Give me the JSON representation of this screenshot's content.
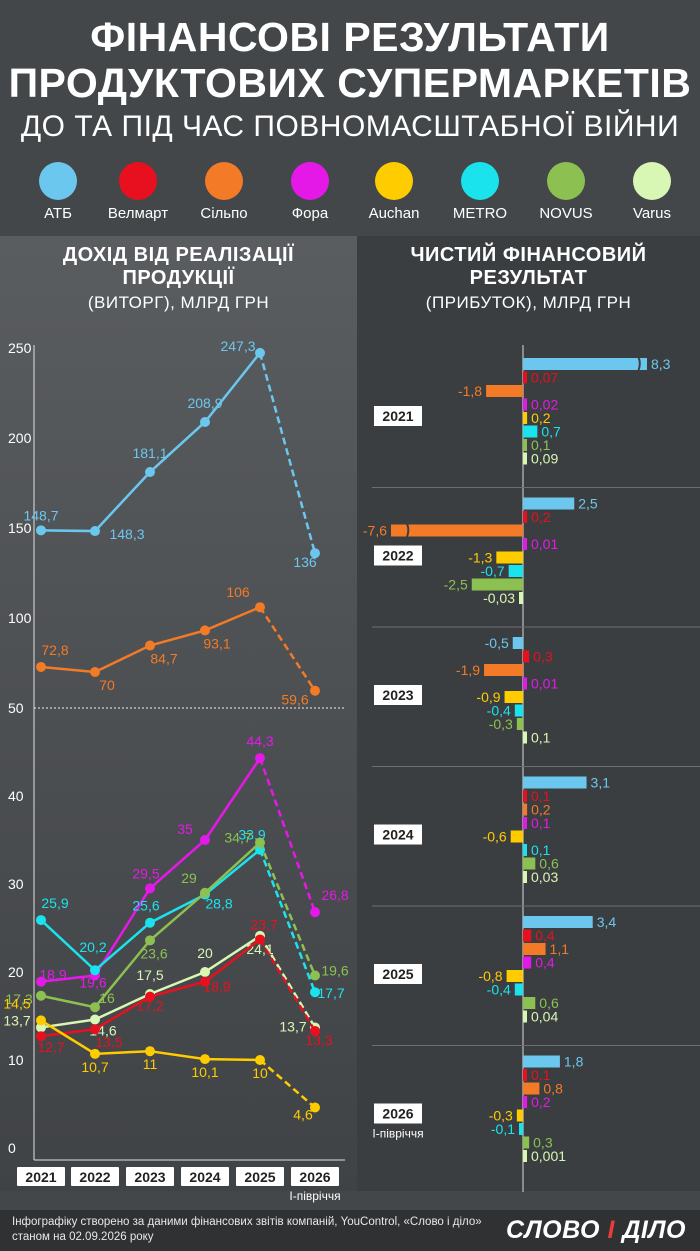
{
  "header": {
    "title_line1": "ФІНАНСОВІ РЕЗУЛЬТАТИ",
    "title_line2": "ПРОДУКТОВИХ СУПЕРМАРКЕТІВ",
    "subtitle": "ДО ТА ПІД ЧАС ПОВНОМАСШТАБНОЇ ВІЙНИ"
  },
  "legend": [
    {
      "name": "АТБ",
      "color": "#6cc7ef"
    },
    {
      "name": "Велмарт",
      "color": "#e8101e"
    },
    {
      "name": "Сільпо",
      "color": "#f37a26"
    },
    {
      "name": "Фора",
      "color": "#e419e8"
    },
    {
      "name": "Auchan",
      "color": "#ffcc00"
    },
    {
      "name": "METRO",
      "color": "#1be3ee"
    },
    {
      "name": "NOVUS",
      "color": "#8cc152"
    },
    {
      "name": "Varus",
      "color": "#d9f7b4"
    }
  ],
  "left_panel": {
    "title_line1": "ДОХІД ВІД РЕАЛІЗАЦІЇ",
    "title_line2": "ПРОДУКЦІЇ",
    "note": "(ВИТОРГ), МЛРД ГРН"
  },
  "right_panel": {
    "title_line1": "ЧИСТИЙ ФІНАНСОВИЙ",
    "title_line2": "РЕЗУЛЬТАТ",
    "note": "(ПРИБУТОК), МЛРД ГРН"
  },
  "chart_data": [
    {
      "type": "line",
      "categories": [
        "2021",
        "2022",
        "2023",
        "2024",
        "2025",
        "2026"
      ],
      "category_note": "І-півріччя",
      "y_ticks": [
        "0",
        "10",
        "20",
        "30",
        "40",
        "50",
        "100",
        "150",
        "200",
        "250"
      ],
      "series": [
        {
          "name": "АТБ",
          "values": [
            148.7,
            148.3,
            181.1,
            208.9,
            247.3,
            136
          ],
          "labels": [
            "148,7",
            "148,3",
            "181,1",
            "208,9",
            "247,3",
            "136"
          ]
        },
        {
          "name": "Сільпо",
          "values": [
            72.8,
            70,
            84.7,
            93.1,
            106,
            59.6
          ],
          "labels": [
            "72,8",
            "70",
            "84,7",
            "93,1",
            "106",
            "59,6"
          ]
        },
        {
          "name": "Фора",
          "values": [
            18.9,
            19.6,
            29.5,
            35,
            44.3,
            26.8
          ],
          "labels": [
            "18,9",
            "19,6",
            "29,5",
            "35",
            "44,3",
            "26,8"
          ]
        },
        {
          "name": "METRO",
          "values": [
            25.9,
            20.2,
            25.6,
            28.8,
            33.9,
            17.7
          ],
          "labels": [
            "25,9",
            "20,2",
            "25,6",
            "28,8",
            "33,9",
            "17,7"
          ]
        },
        {
          "name": "NOVUS",
          "values": [
            17.3,
            16,
            23.6,
            29,
            34.7,
            19.6
          ],
          "labels": [
            "17,3",
            "16",
            "23,6",
            "29",
            "34,7",
            "19,6"
          ]
        },
        {
          "name": "Varus",
          "values": [
            13.7,
            14.6,
            17.5,
            20,
            24.1,
            13.7
          ],
          "labels": [
            "13,7",
            "14,6",
            "17,5",
            "20",
            "24,1",
            "13,7"
          ]
        },
        {
          "name": "Велмарт",
          "values": [
            12.7,
            13.5,
            17.2,
            18.9,
            23.7,
            13.3
          ],
          "labels": [
            "12,7",
            "13,5",
            "17,2",
            "18,9",
            "23,7",
            "13,3"
          ]
        },
        {
          "name": "Auchan",
          "values": [
            14.5,
            10.7,
            11,
            10.1,
            10,
            4.6
          ],
          "labels": [
            "14,5",
            "10,7",
            "11",
            "10,1",
            "10",
            "4,6"
          ]
        }
      ]
    },
    {
      "type": "bar",
      "orientation": "horizontal",
      "series_order": [
        "АТБ",
        "Велмарт",
        "Сільпо",
        "Фора",
        "Auchan",
        "METRO",
        "NOVUS",
        "Varus"
      ],
      "groups": [
        {
          "year": "2021",
          "note": "",
          "values": [
            8.3,
            0.07,
            -1.8,
            0.02,
            0.2,
            0.7,
            0.1,
            0.09
          ],
          "labels": [
            "8,3",
            "0,07",
            "-1,8",
            "0,02",
            "0,2",
            "0,7",
            "0,1",
            "0,09"
          ]
        },
        {
          "year": "2022",
          "note": "",
          "values": [
            2.5,
            0.2,
            -7.6,
            0.01,
            -1.3,
            -0.7,
            -2.5,
            -0.03
          ],
          "labels": [
            "2,5",
            "0,2",
            "-7,6",
            "0,01",
            "-1,3",
            "-0,7",
            "-2,5",
            "-0,03"
          ]
        },
        {
          "year": "2023",
          "note": "",
          "values": [
            -0.5,
            0.3,
            -1.9,
            0.01,
            -0.9,
            -0.4,
            -0.3,
            0.1
          ],
          "labels": [
            "-0,5",
            "0,3",
            "-1,9",
            "0,01",
            "-0,9",
            "-0,4",
            "-0,3",
            "0,1"
          ]
        },
        {
          "year": "2024",
          "note": "",
          "values": [
            3.1,
            0.1,
            0.2,
            0.1,
            -0.6,
            0.1,
            0.6,
            0.03
          ],
          "labels": [
            "3,1",
            "0,1",
            "0,2",
            "0,1",
            "-0,6",
            "0,1",
            "0,6",
            "0,03"
          ]
        },
        {
          "year": "2025",
          "note": "",
          "values": [
            3.4,
            0.4,
            1.1,
            0.4,
            -0.8,
            -0.4,
            0.6,
            0.04
          ],
          "labels": [
            "3,4",
            "0,4",
            "1,1",
            "0,4",
            "-0,8",
            "-0,4",
            "0,6",
            "0,04"
          ]
        },
        {
          "year": "2026",
          "note": "І-півріччя",
          "values": [
            1.8,
            0.1,
            0.8,
            0.2,
            -0.3,
            -0.1,
            0.3,
            0.001
          ],
          "labels": [
            "1,8",
            "0,1",
            "0,8",
            "0,2",
            "-0,3",
            "-0,1",
            "0,3",
            "0,001"
          ]
        }
      ]
    }
  ],
  "footer": {
    "source": "Інфографіку створено за даними фінансових звітів компаній, YouControl, «Слово і діло» станом на 02.09.2026 року",
    "logo_main": "СЛОВО",
    "logo_amp": "І",
    "logo_end": "ДІЛО"
  }
}
